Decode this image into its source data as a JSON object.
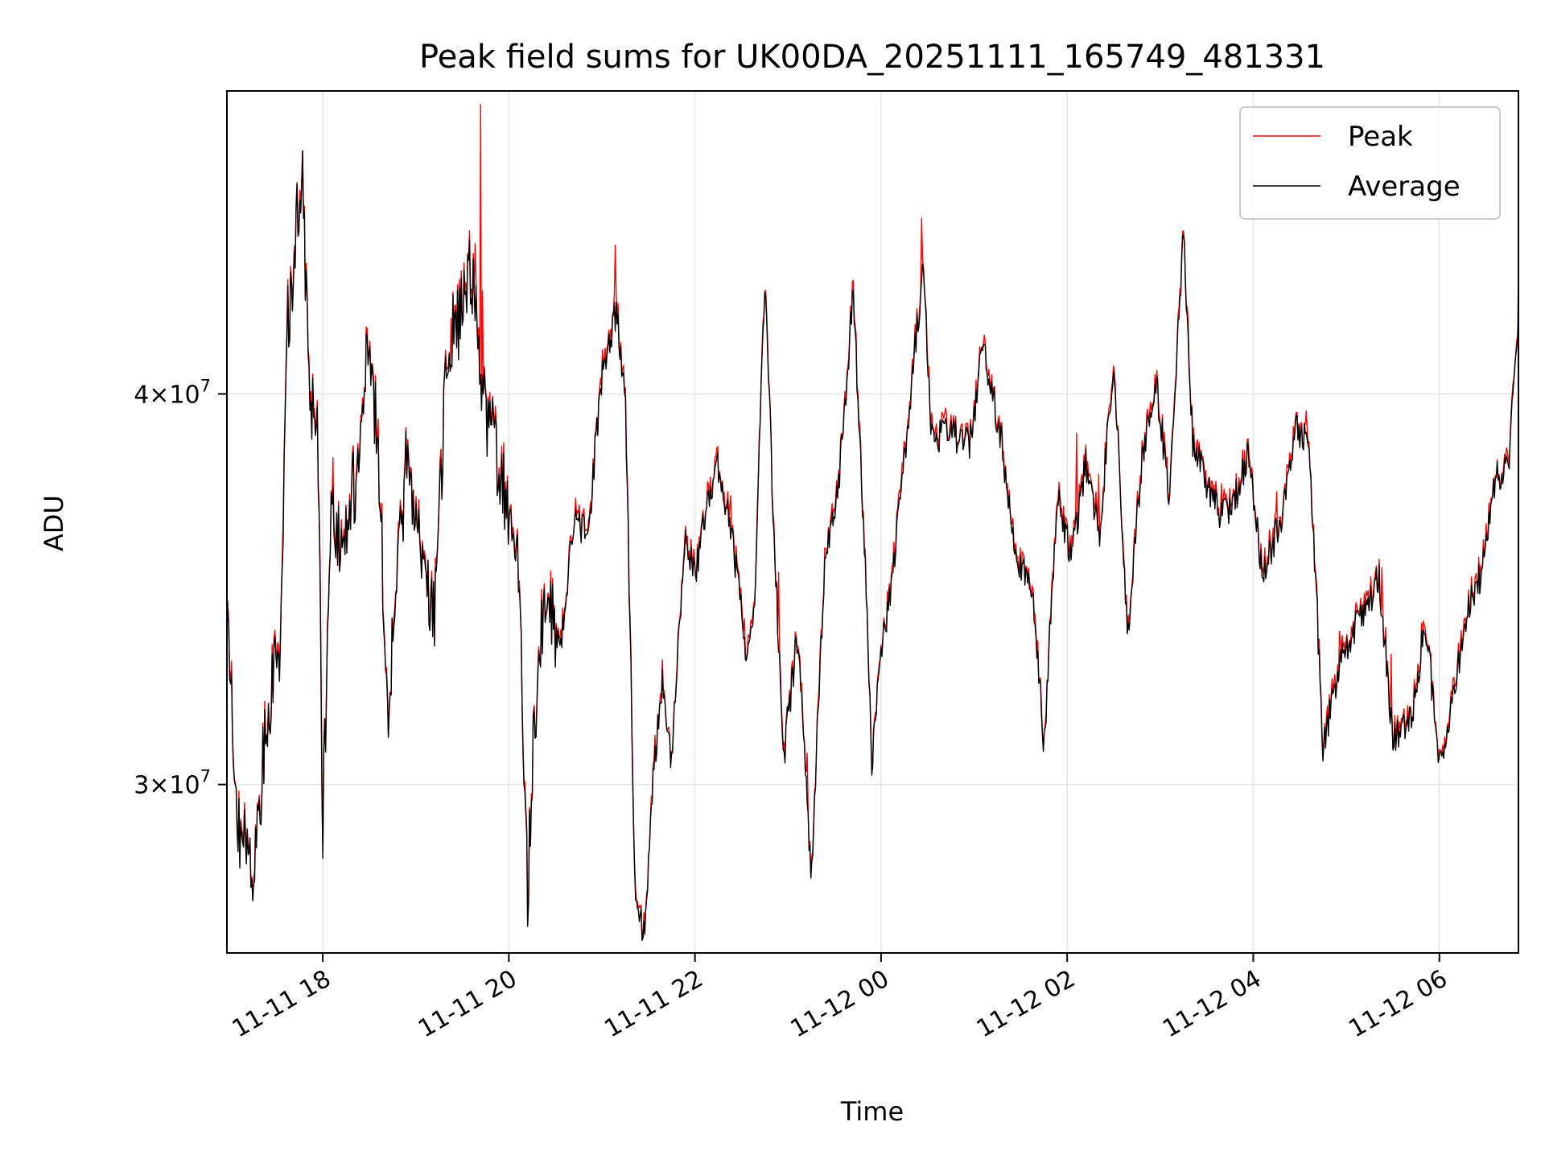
{
  "chart_data": {
    "type": "line",
    "title": "Peak field sums for UK00DA_20251111_165749_481331",
    "xlabel": "Time",
    "ylabel": "ADU",
    "yscale": "log",
    "grid": true,
    "legend_position": "top-right",
    "x_range_hours": [
      16.97,
      6.85
    ],
    "ylim": [
      26500000,
      50000000
    ],
    "x_ticks": [
      {
        "hour": 18,
        "label": "11-11 18"
      },
      {
        "hour": 20,
        "label": "11-11 20"
      },
      {
        "hour": 22,
        "label": "11-11 22"
      },
      {
        "hour": 0,
        "label": "11-12 00"
      },
      {
        "hour": 2,
        "label": "11-12 02"
      },
      {
        "hour": 4,
        "label": "11-12 04"
      },
      {
        "hour": 6,
        "label": "11-12 06"
      }
    ],
    "y_ticks": [
      {
        "value": 30000000,
        "mantissa": "3",
        "exponent": "7"
      },
      {
        "value": 40000000,
        "mantissa": "4",
        "exponent": "7"
      }
    ],
    "y_tick_base": "10",
    "times_symbol": "×",
    "series": [
      {
        "name": "Peak",
        "color": "#ff0000"
      },
      {
        "name": "Average",
        "color": "#000000"
      }
    ],
    "average_series_hours": [
      16.97,
      17.1,
      17.25,
      17.4,
      17.55,
      17.62,
      17.7,
      17.78,
      17.85,
      17.95,
      18.0,
      18.1,
      18.2,
      18.35,
      18.5,
      18.6,
      18.7,
      18.8,
      18.9,
      19.0,
      19.2,
      19.35,
      19.5,
      19.6,
      19.7,
      19.8,
      19.9,
      20.0,
      20.1,
      20.2,
      20.25,
      20.4,
      20.55,
      20.7,
      20.85,
      21.0,
      21.15,
      21.25,
      21.35,
      21.45,
      21.55,
      21.65,
      21.75,
      21.9,
      22.0,
      22.1,
      22.25,
      22.4,
      22.55,
      22.65,
      22.75,
      22.85,
      22.95,
      23.1,
      23.25,
      23.4,
      23.55,
      23.7,
      23.85,
      23.9,
      24.0,
      24.15,
      24.3,
      24.45,
      24.55,
      24.65,
      24.8,
      24.95,
      25.1,
      25.3,
      25.45,
      25.55,
      25.65,
      25.75,
      25.9,
      26.05,
      26.2,
      26.35,
      26.5,
      26.65,
      26.8,
      26.95,
      27.1,
      27.25,
      27.35,
      27.5,
      27.65,
      27.8,
      27.95,
      28.1,
      28.3,
      28.45,
      28.6,
      28.75,
      28.9,
      29.05,
      29.2,
      29.35,
      29.5,
      29.7,
      29.85,
      30.0,
      30.15,
      30.3,
      30.45,
      30.6,
      30.75,
      30.85
    ],
    "average_series_values": [
      33500000,
      29000000,
      28000000,
      31500000,
      33500000,
      42000000,
      44500000,
      47500000,
      40000000,
      38500000,
      29000000,
      37000000,
      35500000,
      37500000,
      42000000,
      38000000,
      31500000,
      35000000,
      38000000,
      36000000,
      34000000,
      41500000,
      42500000,
      44000000,
      40000000,
      39000000,
      38000000,
      36500000,
      35500000,
      27500000,
      30500000,
      35000000,
      33000000,
      36500000,
      36000000,
      40500000,
      42500000,
      40000000,
      28000000,
      26800000,
      30000000,
      32500000,
      30500000,
      36000000,
      35000000,
      36500000,
      38000000,
      36000000,
      33000000,
      34500000,
      43500000,
      36000000,
      30500000,
      33500000,
      28000000,
      35500000,
      37500000,
      43000000,
      34000000,
      30300000,
      33000000,
      35500000,
      39500000,
      43800000,
      38500000,
      38800000,
      38800000,
      38500000,
      41500000,
      38500000,
      35500000,
      35000000,
      34000000,
      30800000,
      37000000,
      35500000,
      38000000,
      36000000,
      41000000,
      33200000,
      38000000,
      40500000,
      37000000,
      45000000,
      38500000,
      37500000,
      36500000,
      37000000,
      38300000,
      35000000,
      36500000,
      39000000,
      38500000,
      30800000,
      32500000,
      33500000,
      34000000,
      35000000,
      31000000,
      31500000,
      33800000,
      30500000,
      32000000,
      34200000,
      35000000,
      37500000,
      38000000,
      42500000
    ]
  }
}
